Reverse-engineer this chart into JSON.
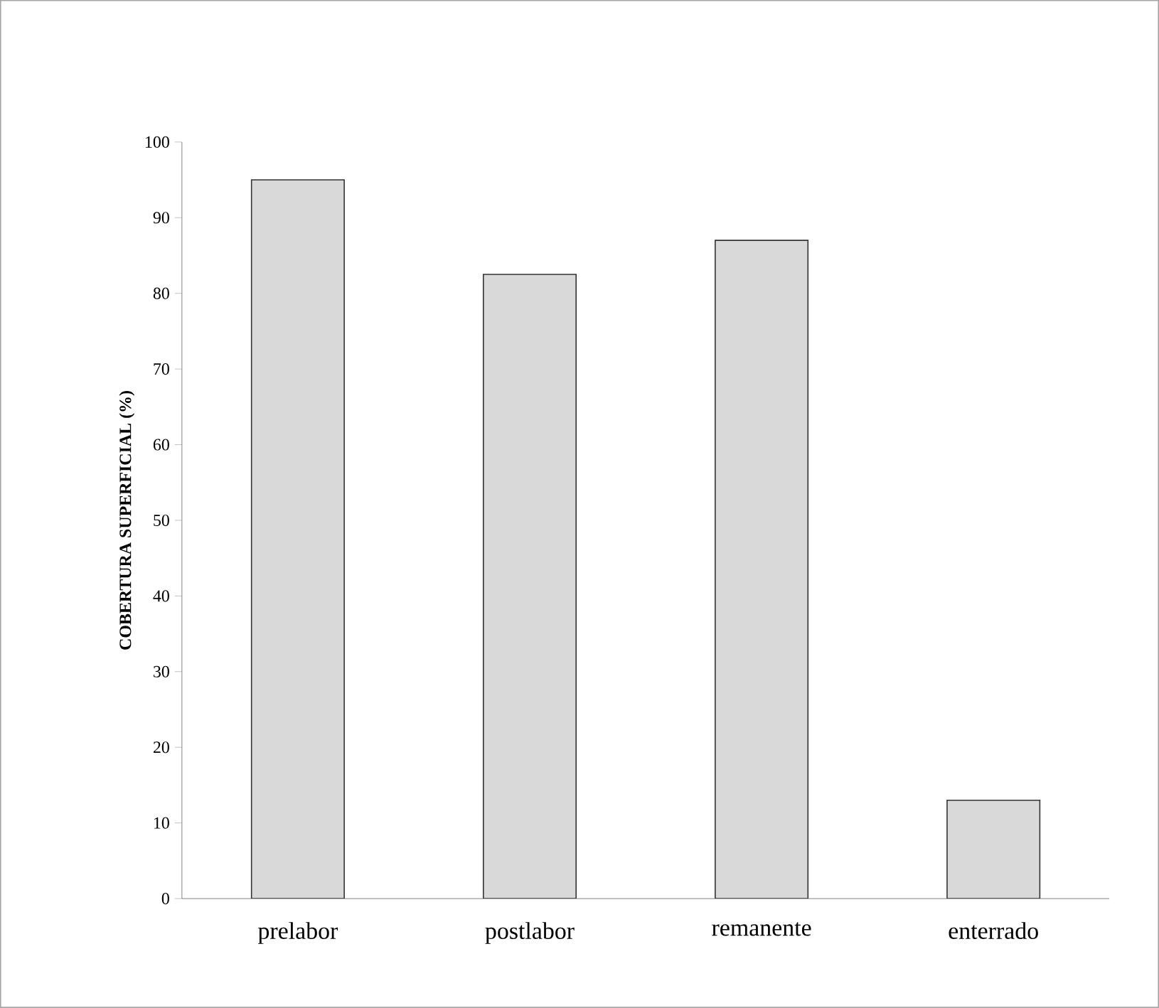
{
  "chart_data": {
    "type": "bar",
    "ylabel": "COBERTURA SUPERFICIAL (%)",
    "categories": [
      "prelabor",
      "postlabor",
      "remanente",
      "enterrado"
    ],
    "values": [
      95,
      82.5,
      87,
      13
    ],
    "color": "#d9d9d9",
    "ylim": [
      0,
      100
    ],
    "yticks": [
      0,
      10,
      20,
      30,
      40,
      50,
      60,
      70,
      80,
      90,
      100
    ]
  }
}
